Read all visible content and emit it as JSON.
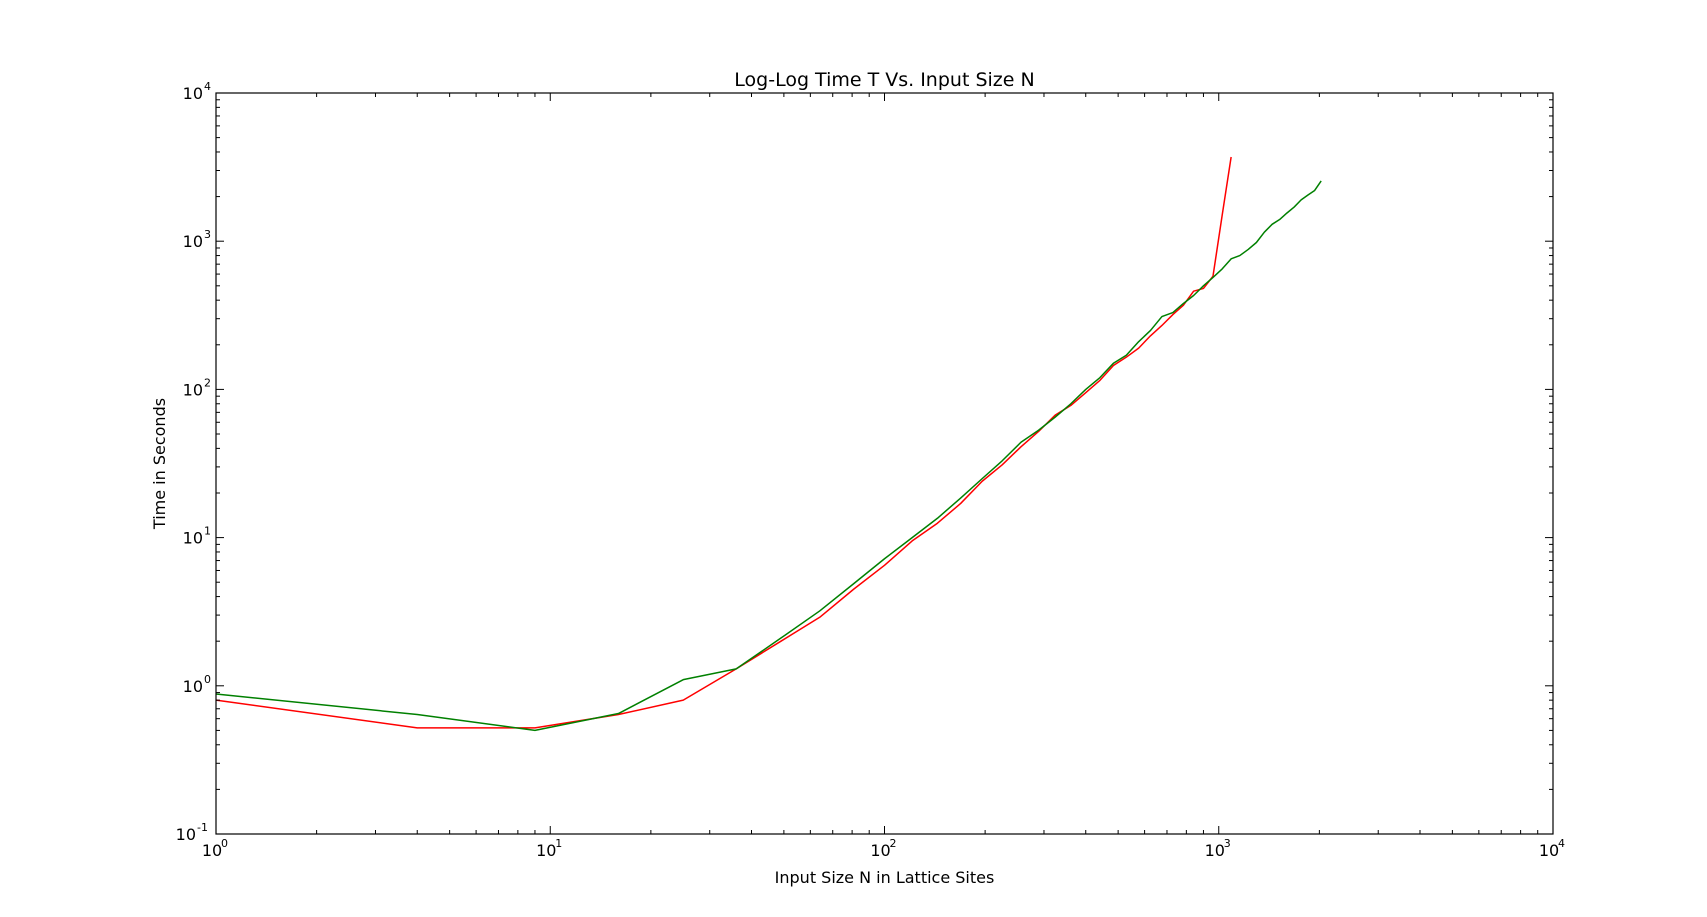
{
  "chart_data": {
    "type": "line",
    "title": "Log-Log Time T Vs. Input Size N",
    "xlabel": "Input Size N in Lattice Sites",
    "ylabel": "Time in Seconds",
    "xscale": "log",
    "yscale": "log",
    "xlim": [
      1,
      10000
    ],
    "ylim": [
      0.1,
      10000
    ],
    "grid": false,
    "x_ticks": [
      {
        "value": 1,
        "base": "10",
        "exp": "0"
      },
      {
        "value": 10,
        "base": "10",
        "exp": "1"
      },
      {
        "value": 100,
        "base": "10",
        "exp": "2"
      },
      {
        "value": 1000,
        "base": "10",
        "exp": "3"
      },
      {
        "value": 10000,
        "base": "10",
        "exp": "4"
      }
    ],
    "y_ticks": [
      {
        "value": 0.1,
        "base": "10",
        "exp": "-1"
      },
      {
        "value": 1,
        "base": "10",
        "exp": "0"
      },
      {
        "value": 10,
        "base": "10",
        "exp": "1"
      },
      {
        "value": 100,
        "base": "10",
        "exp": "2"
      },
      {
        "value": 1000,
        "base": "10",
        "exp": "3"
      },
      {
        "value": 10000,
        "base": "10",
        "exp": "4"
      }
    ],
    "series": [
      {
        "color": "#ff0000",
        "points": [
          [
            1,
            0.8
          ],
          [
            4,
            0.52
          ],
          [
            9,
            0.52
          ],
          [
            16,
            0.64
          ],
          [
            25,
            0.8
          ],
          [
            36,
            1.3
          ],
          [
            49,
            2.0
          ],
          [
            64,
            2.9
          ],
          [
            81,
            4.5
          ],
          [
            100,
            6.5
          ],
          [
            121,
            9.5
          ],
          [
            144,
            12.5
          ],
          [
            169,
            17.0
          ],
          [
            196,
            24.0
          ],
          [
            225,
            31.0
          ],
          [
            256,
            41.0
          ],
          [
            289,
            52.0
          ],
          [
            324,
            67.0
          ],
          [
            361,
            78.0
          ],
          [
            400,
            95.0
          ],
          [
            441,
            115.0
          ],
          [
            484,
            145.0
          ],
          [
            529,
            165.0
          ],
          [
            576,
            190.0
          ],
          [
            625,
            230.0
          ],
          [
            676,
            270.0
          ],
          [
            729,
            320.0
          ],
          [
            784,
            370.0
          ],
          [
            841,
            460.0
          ],
          [
            900,
            480.0
          ],
          [
            961,
            580.0
          ],
          [
            1024,
            1500.0
          ],
          [
            1089,
            3700.0
          ]
        ]
      },
      {
        "color": "#008000",
        "points": [
          [
            1,
            0.88
          ],
          [
            4,
            0.64
          ],
          [
            9,
            0.5
          ],
          [
            16,
            0.65
          ],
          [
            25,
            1.1
          ],
          [
            36,
            1.3
          ],
          [
            49,
            2.1
          ],
          [
            64,
            3.2
          ],
          [
            81,
            4.9
          ],
          [
            100,
            7.2
          ],
          [
            121,
            10.0
          ],
          [
            144,
            13.5
          ],
          [
            169,
            18.5
          ],
          [
            196,
            25.0
          ],
          [
            225,
            33.0
          ],
          [
            256,
            44.0
          ],
          [
            289,
            53.0
          ],
          [
            324,
            65.0
          ],
          [
            361,
            80.0
          ],
          [
            400,
            100.0
          ],
          [
            441,
            120.0
          ],
          [
            484,
            150.0
          ],
          [
            529,
            170.0
          ],
          [
            576,
            210.0
          ],
          [
            625,
            250.0
          ],
          [
            676,
            310.0
          ],
          [
            729,
            330.0
          ],
          [
            784,
            380.0
          ],
          [
            841,
            430.0
          ],
          [
            900,
            500.0
          ],
          [
            961,
            570.0
          ],
          [
            1024,
            650.0
          ],
          [
            1089,
            760.0
          ],
          [
            1156,
            800.0
          ],
          [
            1225,
            880.0
          ],
          [
            1296,
            980.0
          ],
          [
            1369,
            1150.0
          ],
          [
            1444,
            1300.0
          ],
          [
            1521,
            1400.0
          ],
          [
            1600,
            1550.0
          ],
          [
            1681,
            1700.0
          ],
          [
            1764,
            1900.0
          ],
          [
            1849,
            2050.0
          ],
          [
            1936,
            2200.0
          ],
          [
            2025,
            2550.0
          ]
        ]
      }
    ]
  }
}
